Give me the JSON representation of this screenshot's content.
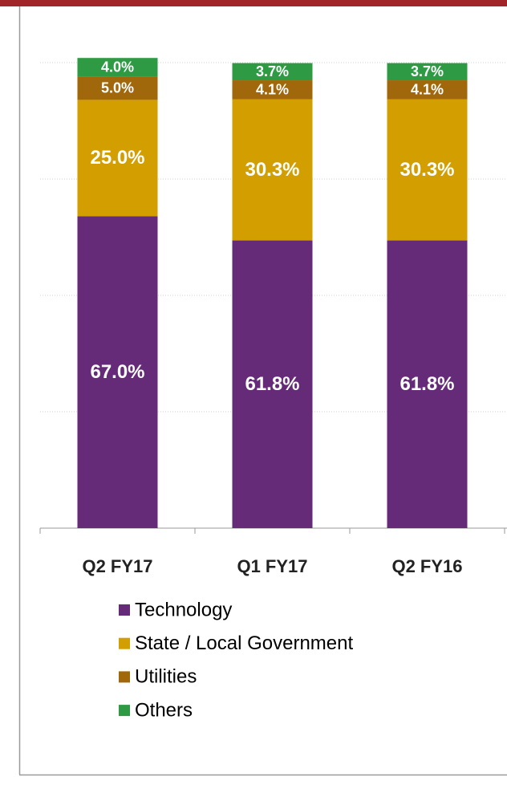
{
  "chart_data": {
    "type": "stacked_bar",
    "categories": [
      "Q2 FY17",
      "Q1 FY17",
      "Q2 FY16"
    ],
    "series": [
      {
        "name": "Technology",
        "color": "#652a78",
        "values": [
          67.0,
          61.8,
          61.8
        ],
        "value_labels": [
          "67.0%",
          "61.8%",
          "61.8%"
        ]
      },
      {
        "name": "State / Local Government",
        "color": "#d29e00",
        "values": [
          25.0,
          30.3,
          30.3
        ],
        "value_labels": [
          "25.0%",
          "30.3%",
          "30.3%"
        ]
      },
      {
        "name": "Utilities",
        "color": "#a0680a",
        "values": [
          5.0,
          4.1,
          4.1
        ],
        "value_labels": [
          "5.0%",
          "4.1%",
          "4.1%"
        ]
      },
      {
        "name": "Others",
        "color": "#2e9a44",
        "values": [
          4.0,
          3.7,
          3.7
        ],
        "value_labels": [
          "4.0%",
          "3.7%",
          "3.7%"
        ]
      }
    ],
    "ylim": [
      0,
      100
    ],
    "yticks": [
      0,
      25,
      50,
      75,
      100
    ],
    "grid": true
  }
}
